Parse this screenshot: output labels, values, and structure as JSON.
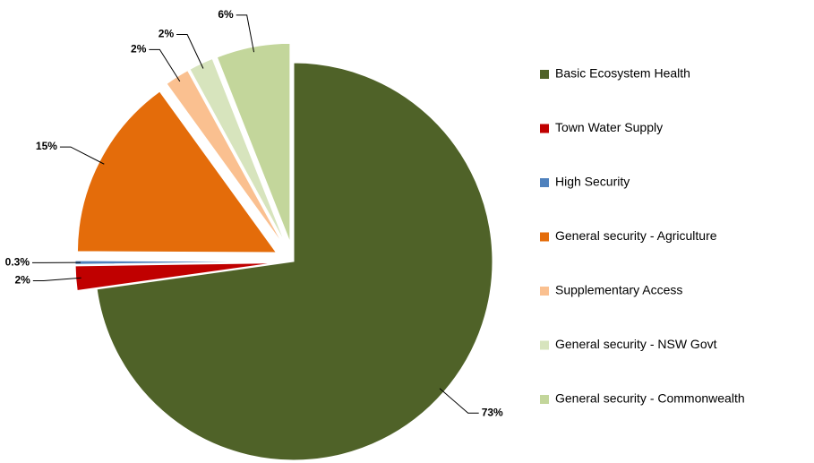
{
  "chart_data": {
    "type": "pie",
    "categories": [
      "Basic Ecosystem Health",
      "Town Water Supply",
      "High Security",
      "General security - Agriculture",
      "Supplementary Access",
      "General security - NSW Govt",
      "General security - Commonwealth"
    ],
    "values": [
      73,
      2,
      0.3,
      15,
      2,
      2,
      6
    ],
    "value_labels": [
      "73%",
      "2%",
      "0.3%",
      "15%",
      "2%",
      "2%",
      "6%"
    ],
    "colors": [
      "#4f6228",
      "#c00000",
      "#4f81bd",
      "#e46c0a",
      "#fac090",
      "#d7e4bd",
      "#c3d69b"
    ],
    "legend": "right"
  }
}
